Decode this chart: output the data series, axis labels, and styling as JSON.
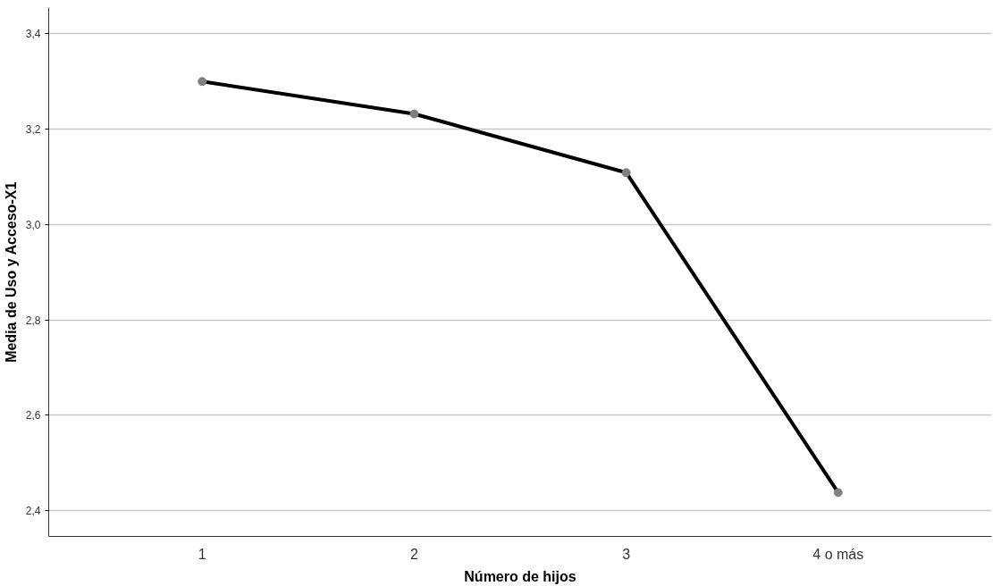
{
  "chart_data": {
    "type": "line",
    "xlabel": "Número de hijos",
    "ylabel": "Media de Uso y Acceso-X1",
    "categories": [
      "1",
      "2",
      "3",
      "4 o más"
    ],
    "series": [
      {
        "color": "#000000",
        "values": [
          3.3,
          3.232,
          3.109,
          2.438
        ]
      }
    ],
    "ylim": [
      2.346,
      3.455
    ],
    "yticks": [
      {
        "value": 2.4,
        "label": "2,4"
      },
      {
        "value": 2.6,
        "label": "2,6"
      },
      {
        "value": 2.8,
        "label": "2,8"
      },
      {
        "value": 3.0,
        "label": "3,0"
      },
      {
        "value": 3.2,
        "label": "3,2"
      },
      {
        "value": 3.4,
        "label": "3,4"
      }
    ],
    "grid": "y",
    "marker": "circle",
    "line_style": "solid"
  }
}
